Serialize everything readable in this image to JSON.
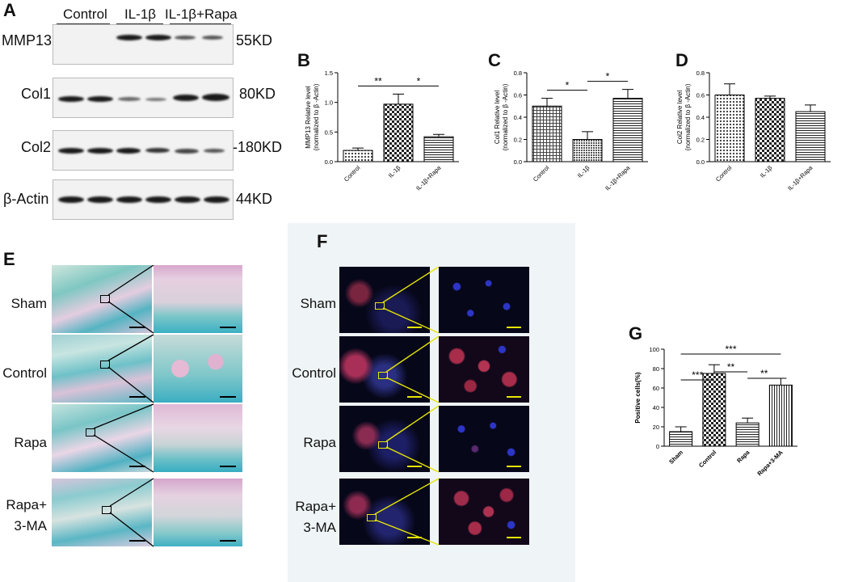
{
  "panels": {
    "A": "A",
    "B": "B",
    "C": "C",
    "D": "D",
    "E": "E",
    "F": "F",
    "G": "G"
  },
  "western_blot": {
    "groups": [
      "Control",
      "IL-1β",
      "IL-1β+Rapa"
    ],
    "rows": [
      {
        "protein": "MMP13",
        "size": "55KD"
      },
      {
        "protein": "Col1",
        "size": "80KD"
      },
      {
        "protein": "Col2",
        "size": "-180KD"
      },
      {
        "protein": "β-Actin",
        "size": "44KD"
      }
    ]
  },
  "chart_data": [
    {
      "panel": "B",
      "type": "bar",
      "categories": [
        "Control",
        "IL-1β",
        "IL-1β+Rapa"
      ],
      "values": [
        0.19,
        0.97,
        0.42
      ],
      "errors": [
        0.04,
        0.17,
        0.04
      ],
      "ylabel": "MMP13 Relative level\n(normalized to β -Actin)",
      "ylim": [
        0,
        1.5
      ],
      "yticks": [
        "0.0",
        "0.5",
        "1.0",
        "1.5"
      ],
      "significance": [
        {
          "from": 0,
          "to": 1,
          "label": "**"
        },
        {
          "from": 1,
          "to": 2,
          "label": "*"
        }
      ]
    },
    {
      "panel": "C",
      "type": "bar",
      "categories": [
        "Control",
        "IL-1β",
        "IL-1β+Rapa"
      ],
      "values": [
        0.5,
        0.2,
        0.57
      ],
      "errors": [
        0.07,
        0.07,
        0.08
      ],
      "ylabel": "Col1 Relative level\n(normalized to β -Actin)",
      "ylim": [
        0,
        0.8
      ],
      "yticks": [
        "0.0",
        "0.2",
        "0.4",
        "0.6",
        "0.8"
      ],
      "significance": [
        {
          "from": 0,
          "to": 1,
          "label": "*"
        },
        {
          "from": 1,
          "to": 2,
          "label": "*"
        }
      ]
    },
    {
      "panel": "D",
      "type": "bar",
      "categories": [
        "Control",
        "IL-1β",
        "IL-1β+Rapa"
      ],
      "values": [
        0.6,
        0.57,
        0.45
      ],
      "errors": [
        0.1,
        0.02,
        0.06
      ],
      "ylabel": "Col2 Relative level\n(normalized to β -Actin)",
      "ylim": [
        0,
        0.8
      ],
      "yticks": [
        "0.0",
        "0.2",
        "0.4",
        "0.6",
        "0.8"
      ],
      "significance": []
    },
    {
      "panel": "G",
      "type": "bar",
      "categories": [
        "Sham",
        "Control",
        "Rapa",
        "Rapa+3-MA"
      ],
      "values": [
        15,
        75,
        24,
        63
      ],
      "errors": [
        5,
        9,
        5,
        7
      ],
      "ylabel": "Positive cells(%)",
      "ylim": [
        0,
        100
      ],
      "yticks": [
        "0",
        "20",
        "40",
        "60",
        "80",
        "100"
      ],
      "significance": [
        {
          "from": 0,
          "to": 1,
          "label": "***",
          "level": 0
        },
        {
          "from": 1,
          "to": 2,
          "label": "**",
          "level": 1
        },
        {
          "from": 2,
          "to": 3,
          "label": "**",
          "level": 0
        },
        {
          "from": 0,
          "to": 3,
          "label": "***",
          "level": 2
        }
      ]
    }
  ],
  "histology": {
    "rows": [
      "Sham",
      "Control",
      "Rapa",
      "Rapa+\n3-MA"
    ]
  },
  "fluorescence": {
    "rows": [
      "Sham",
      "Control",
      "Rapa",
      "Rapa+\n3-MA"
    ]
  }
}
